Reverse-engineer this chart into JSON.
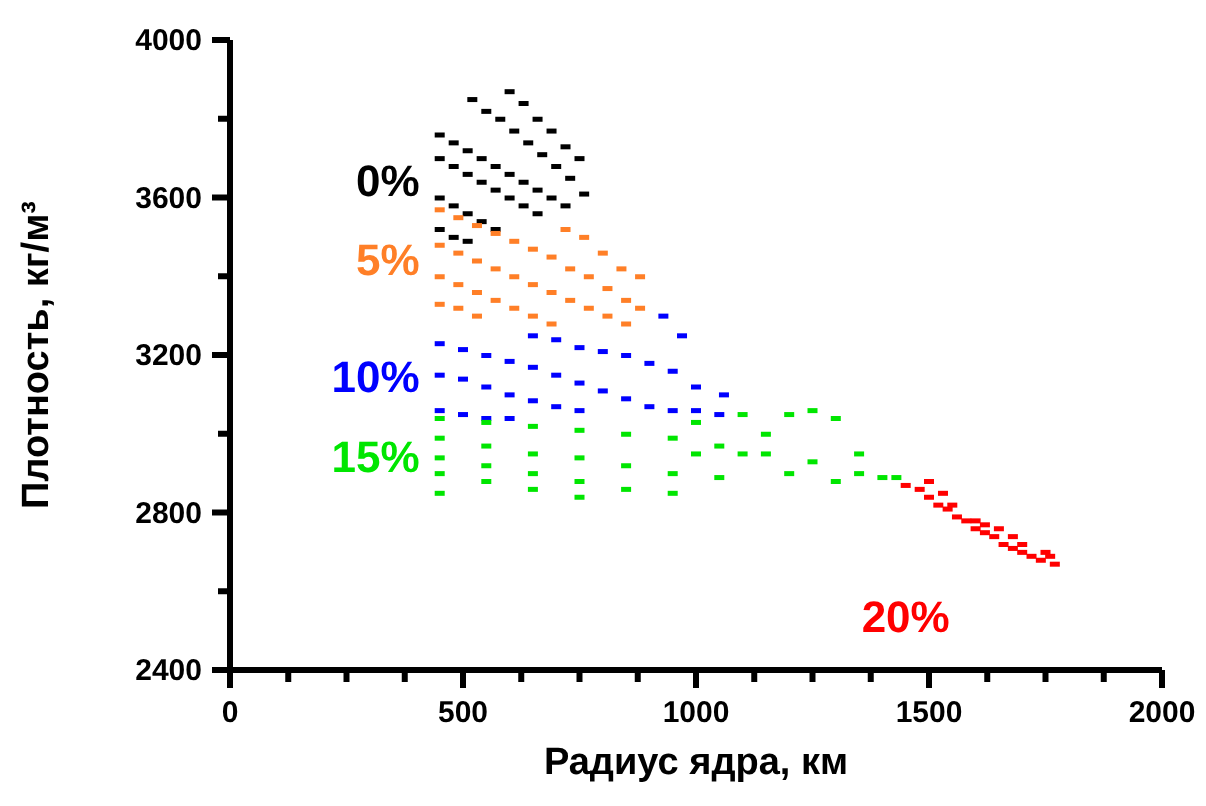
{
  "chart_data": {
    "type": "scatter",
    "xlabel": "Радиус ядра, км",
    "ylabel": "Плотность, кг/м³",
    "xlim": [
      0,
      2000
    ],
    "ylim": [
      2400,
      4000
    ],
    "xticks": [
      0,
      {
        "value": 125,
        "label": null
      },
      {
        "value": 250,
        "label": null
      },
      {
        "value": 375,
        "label": null
      },
      500,
      {
        "value": 625,
        "label": null
      },
      {
        "value": 750,
        "label": null
      },
      {
        "value": 875,
        "label": null
      },
      1000,
      {
        "value": 1125,
        "label": null
      },
      {
        "value": 1250,
        "label": null
      },
      {
        "value": 1375,
        "label": null
      },
      1500,
      {
        "value": 1625,
        "label": null
      },
      {
        "value": 1750,
        "label": null
      },
      {
        "value": 1875,
        "label": null
      },
      2000
    ],
    "yticks": [
      2400,
      {
        "value": 2600,
        "label": null
      },
      2800,
      {
        "value": 3000,
        "label": null
      },
      3200,
      {
        "value": 3400,
        "label": null
      },
      3600,
      {
        "value": 3800,
        "label": null
      },
      4000
    ],
    "grid": false,
    "legend": false,
    "marker": "square",
    "series": [
      {
        "name": "0%",
        "color": "#000000",
        "x": [
          520,
          550,
          580,
          610,
          640,
          670,
          700,
          730,
          760,
          600,
          630,
          660,
          690,
          720,
          750,
          450,
          480,
          510,
          540,
          570,
          600,
          630,
          660,
          690,
          720,
          450,
          480,
          510,
          540,
          570,
          600,
          630,
          660,
          450,
          480,
          510,
          540,
          570,
          450,
          480,
          510
        ],
        "values": [
          3850,
          3820,
          3800,
          3770,
          3740,
          3710,
          3680,
          3650,
          3610,
          3870,
          3840,
          3800,
          3770,
          3730,
          3700,
          3760,
          3740,
          3720,
          3700,
          3680,
          3660,
          3640,
          3620,
          3600,
          3580,
          3700,
          3680,
          3660,
          3640,
          3620,
          3600,
          3580,
          3560,
          3600,
          3580,
          3560,
          3540,
          3520,
          3520,
          3500,
          3490
        ]
      },
      {
        "name": "5%",
        "color": "#ff7f27",
        "x": [
          450,
          490,
          530,
          570,
          610,
          650,
          690,
          730,
          770,
          810,
          850,
          880,
          450,
          490,
          530,
          570,
          610,
          650,
          690,
          730,
          770,
          810,
          850,
          450,
          490,
          530,
          570,
          610,
          650,
          690,
          450,
          490,
          530,
          720,
          760,
          800,
          840,
          880
        ],
        "values": [
          3570,
          3550,
          3530,
          3510,
          3490,
          3470,
          3450,
          3420,
          3400,
          3370,
          3340,
          3320,
          3480,
          3460,
          3440,
          3420,
          3400,
          3380,
          3360,
          3340,
          3320,
          3300,
          3280,
          3400,
          3380,
          3360,
          3340,
          3320,
          3300,
          3280,
          3330,
          3320,
          3300,
          3520,
          3500,
          3460,
          3420,
          3400
        ]
      },
      {
        "name": "10%",
        "color": "#0000ff",
        "x": [
          450,
          500,
          550,
          600,
          650,
          700,
          750,
          800,
          850,
          900,
          950,
          1000,
          1050,
          450,
          500,
          550,
          600,
          650,
          700,
          750,
          450,
          500,
          550,
          600,
          650,
          700,
          750,
          800,
          850,
          900,
          950,
          1000,
          930,
          970,
          1060
        ],
        "values": [
          3230,
          3215,
          3200,
          3185,
          3170,
          3150,
          3130,
          3110,
          3090,
          3070,
          3060,
          3060,
          3050,
          3150,
          3140,
          3120,
          3100,
          3085,
          3070,
          3060,
          3060,
          3050,
          3040,
          3040,
          3250,
          3240,
          3220,
          3210,
          3200,
          3180,
          3160,
          3120,
          3300,
          3250,
          3100
        ]
      },
      {
        "name": "15%",
        "color": "#00e600",
        "x": [
          450,
          550,
          650,
          750,
          850,
          950,
          1050,
          1150,
          1250,
          1350,
          1430,
          450,
          550,
          650,
          750,
          850,
          950,
          1050,
          450,
          550,
          650,
          750,
          850,
          950,
          450,
          550,
          650,
          750,
          450,
          1000,
          1100,
          1200,
          1250,
          1300,
          1100,
          1200,
          1300,
          1350,
          1400,
          1000,
          1150
        ],
        "values": [
          3040,
          3030,
          3020,
          3010,
          3000,
          2990,
          2970,
          2950,
          2930,
          2900,
          2890,
          2990,
          2970,
          2950,
          2940,
          2920,
          2900,
          2890,
          2940,
          2920,
          2900,
          2880,
          2860,
          2850,
          2900,
          2880,
          2860,
          2840,
          2850,
          3030,
          3050,
          3050,
          3060,
          3040,
          2950,
          2900,
          2880,
          2950,
          2890,
          2950,
          3000
        ]
      },
      {
        "name": "20%",
        "color": "#ff0000",
        "x": [
          1450,
          1480,
          1500,
          1520,
          1540,
          1560,
          1580,
          1600,
          1620,
          1640,
          1660,
          1680,
          1700,
          1720,
          1740,
          1760,
          1770,
          1500,
          1550,
          1600,
          1650,
          1700,
          1750,
          1530,
          1620,
          1680
        ],
        "values": [
          2870,
          2860,
          2840,
          2820,
          2810,
          2790,
          2780,
          2760,
          2750,
          2740,
          2720,
          2710,
          2700,
          2690,
          2680,
          2690,
          2670,
          2880,
          2820,
          2780,
          2760,
          2720,
          2700,
          2850,
          2770,
          2740
        ]
      }
    ]
  }
}
